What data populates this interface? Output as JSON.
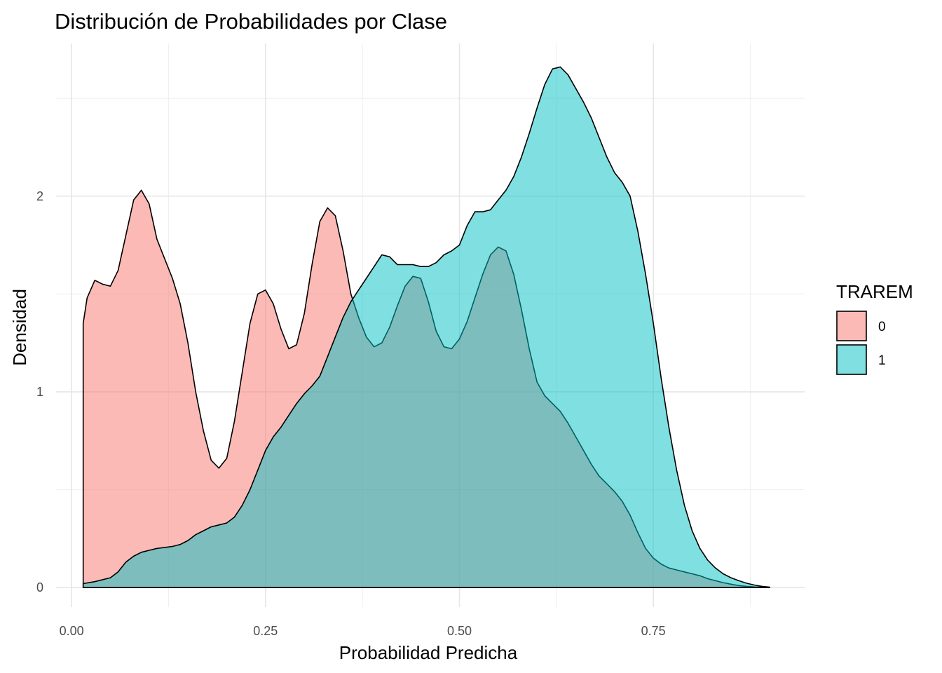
{
  "chart_data": {
    "type": "area",
    "title": "Distribución de Probabilidades por Clase",
    "xlabel": "Probabilidad Predicha",
    "ylabel": "Densidad",
    "xlim": [
      -0.02,
      0.945
    ],
    "ylim": [
      -0.1,
      2.78
    ],
    "x_ticks": [
      0.0,
      0.25,
      0.5,
      0.75
    ],
    "x_tick_labels": [
      "0.00",
      "0.25",
      "0.50",
      "0.75"
    ],
    "y_ticks": [
      0,
      1,
      2
    ],
    "y_tick_labels": [
      "0",
      "1",
      "2"
    ],
    "grid": true,
    "legend": {
      "title": "TRAREM",
      "position": "right"
    },
    "series": [
      {
        "name": "0",
        "color": "#F8766D",
        "alpha": 0.5,
        "points": [
          [
            0.015,
            0
          ],
          [
            0.015,
            1.35
          ],
          [
            0.02,
            1.48
          ],
          [
            0.03,
            1.57
          ],
          [
            0.04,
            1.55
          ],
          [
            0.05,
            1.54
          ],
          [
            0.06,
            1.62
          ],
          [
            0.07,
            1.8
          ],
          [
            0.08,
            1.98
          ],
          [
            0.09,
            2.03
          ],
          [
            0.1,
            1.96
          ],
          [
            0.11,
            1.78
          ],
          [
            0.12,
            1.68
          ],
          [
            0.13,
            1.58
          ],
          [
            0.14,
            1.45
          ],
          [
            0.15,
            1.25
          ],
          [
            0.16,
            1.0
          ],
          [
            0.17,
            0.8
          ],
          [
            0.18,
            0.65
          ],
          [
            0.19,
            0.61
          ],
          [
            0.2,
            0.66
          ],
          [
            0.21,
            0.85
          ],
          [
            0.22,
            1.1
          ],
          [
            0.23,
            1.35
          ],
          [
            0.24,
            1.5
          ],
          [
            0.25,
            1.52
          ],
          [
            0.26,
            1.45
          ],
          [
            0.27,
            1.32
          ],
          [
            0.28,
            1.22
          ],
          [
            0.29,
            1.24
          ],
          [
            0.3,
            1.4
          ],
          [
            0.31,
            1.65
          ],
          [
            0.32,
            1.87
          ],
          [
            0.33,
            1.94
          ],
          [
            0.34,
            1.9
          ],
          [
            0.35,
            1.72
          ],
          [
            0.36,
            1.5
          ],
          [
            0.37,
            1.38
          ],
          [
            0.38,
            1.28
          ],
          [
            0.39,
            1.23
          ],
          [
            0.4,
            1.25
          ],
          [
            0.41,
            1.33
          ],
          [
            0.42,
            1.44
          ],
          [
            0.43,
            1.54
          ],
          [
            0.44,
            1.59
          ],
          [
            0.45,
            1.58
          ],
          [
            0.46,
            1.46
          ],
          [
            0.47,
            1.31
          ],
          [
            0.48,
            1.23
          ],
          [
            0.49,
            1.22
          ],
          [
            0.5,
            1.27
          ],
          [
            0.51,
            1.36
          ],
          [
            0.52,
            1.48
          ],
          [
            0.53,
            1.6
          ],
          [
            0.54,
            1.7
          ],
          [
            0.55,
            1.74
          ],
          [
            0.56,
            1.72
          ],
          [
            0.57,
            1.6
          ],
          [
            0.58,
            1.42
          ],
          [
            0.59,
            1.22
          ],
          [
            0.6,
            1.05
          ],
          [
            0.61,
            0.98
          ],
          [
            0.62,
            0.94
          ],
          [
            0.63,
            0.9
          ],
          [
            0.64,
            0.84
          ],
          [
            0.65,
            0.77
          ],
          [
            0.66,
            0.7
          ],
          [
            0.67,
            0.63
          ],
          [
            0.68,
            0.57
          ],
          [
            0.69,
            0.53
          ],
          [
            0.7,
            0.49
          ],
          [
            0.71,
            0.44
          ],
          [
            0.72,
            0.37
          ],
          [
            0.73,
            0.28
          ],
          [
            0.74,
            0.2
          ],
          [
            0.75,
            0.15
          ],
          [
            0.76,
            0.12
          ],
          [
            0.77,
            0.1
          ],
          [
            0.78,
            0.09
          ],
          [
            0.79,
            0.08
          ],
          [
            0.8,
            0.07
          ],
          [
            0.81,
            0.06
          ],
          [
            0.82,
            0.045
          ],
          [
            0.83,
            0.035
          ],
          [
            0.84,
            0.025
          ],
          [
            0.85,
            0.017
          ],
          [
            0.86,
            0.01
          ],
          [
            0.87,
            0.006
          ],
          [
            0.88,
            0.003
          ],
          [
            0.9,
            0.001
          ],
          [
            0.9,
            0
          ]
        ]
      },
      {
        "name": "1",
        "color": "#00BFC4",
        "alpha": 0.5,
        "points": [
          [
            0.015,
            0
          ],
          [
            0.015,
            0.02
          ],
          [
            0.03,
            0.03
          ],
          [
            0.05,
            0.05
          ],
          [
            0.06,
            0.08
          ],
          [
            0.07,
            0.13
          ],
          [
            0.08,
            0.16
          ],
          [
            0.09,
            0.18
          ],
          [
            0.1,
            0.19
          ],
          [
            0.11,
            0.2
          ],
          [
            0.13,
            0.21
          ],
          [
            0.14,
            0.22
          ],
          [
            0.15,
            0.24
          ],
          [
            0.16,
            0.27
          ],
          [
            0.17,
            0.29
          ],
          [
            0.18,
            0.31
          ],
          [
            0.19,
            0.32
          ],
          [
            0.2,
            0.33
          ],
          [
            0.21,
            0.36
          ],
          [
            0.22,
            0.42
          ],
          [
            0.23,
            0.5
          ],
          [
            0.24,
            0.6
          ],
          [
            0.25,
            0.7
          ],
          [
            0.26,
            0.77
          ],
          [
            0.27,
            0.82
          ],
          [
            0.28,
            0.88
          ],
          [
            0.29,
            0.94
          ],
          [
            0.3,
            0.99
          ],
          [
            0.31,
            1.03
          ],
          [
            0.32,
            1.08
          ],
          [
            0.33,
            1.18
          ],
          [
            0.34,
            1.28
          ],
          [
            0.35,
            1.38
          ],
          [
            0.36,
            1.46
          ],
          [
            0.37,
            1.52
          ],
          [
            0.38,
            1.58
          ],
          [
            0.39,
            1.64
          ],
          [
            0.4,
            1.7
          ],
          [
            0.41,
            1.69
          ],
          [
            0.42,
            1.65
          ],
          [
            0.43,
            1.65
          ],
          [
            0.44,
            1.65
          ],
          [
            0.45,
            1.64
          ],
          [
            0.46,
            1.64
          ],
          [
            0.47,
            1.66
          ],
          [
            0.48,
            1.7
          ],
          [
            0.49,
            1.72
          ],
          [
            0.5,
            1.75
          ],
          [
            0.51,
            1.85
          ],
          [
            0.52,
            1.92
          ],
          [
            0.53,
            1.92
          ],
          [
            0.54,
            1.93
          ],
          [
            0.55,
            1.98
          ],
          [
            0.56,
            2.03
          ],
          [
            0.57,
            2.1
          ],
          [
            0.58,
            2.2
          ],
          [
            0.59,
            2.32
          ],
          [
            0.6,
            2.45
          ],
          [
            0.61,
            2.57
          ],
          [
            0.62,
            2.65
          ],
          [
            0.63,
            2.66
          ],
          [
            0.64,
            2.62
          ],
          [
            0.65,
            2.55
          ],
          [
            0.66,
            2.48
          ],
          [
            0.67,
            2.4
          ],
          [
            0.68,
            2.3
          ],
          [
            0.69,
            2.2
          ],
          [
            0.7,
            2.12
          ],
          [
            0.71,
            2.07
          ],
          [
            0.72,
            2.0
          ],
          [
            0.73,
            1.82
          ],
          [
            0.74,
            1.6
          ],
          [
            0.75,
            1.35
          ],
          [
            0.76,
            1.07
          ],
          [
            0.77,
            0.82
          ],
          [
            0.78,
            0.6
          ],
          [
            0.79,
            0.42
          ],
          [
            0.8,
            0.29
          ],
          [
            0.81,
            0.2
          ],
          [
            0.82,
            0.14
          ],
          [
            0.83,
            0.1
          ],
          [
            0.84,
            0.07
          ],
          [
            0.85,
            0.05
          ],
          [
            0.86,
            0.035
          ],
          [
            0.87,
            0.022
          ],
          [
            0.88,
            0.013
          ],
          [
            0.89,
            0.006
          ],
          [
            0.9,
            0.002
          ],
          [
            0.9,
            0
          ]
        ]
      }
    ]
  }
}
